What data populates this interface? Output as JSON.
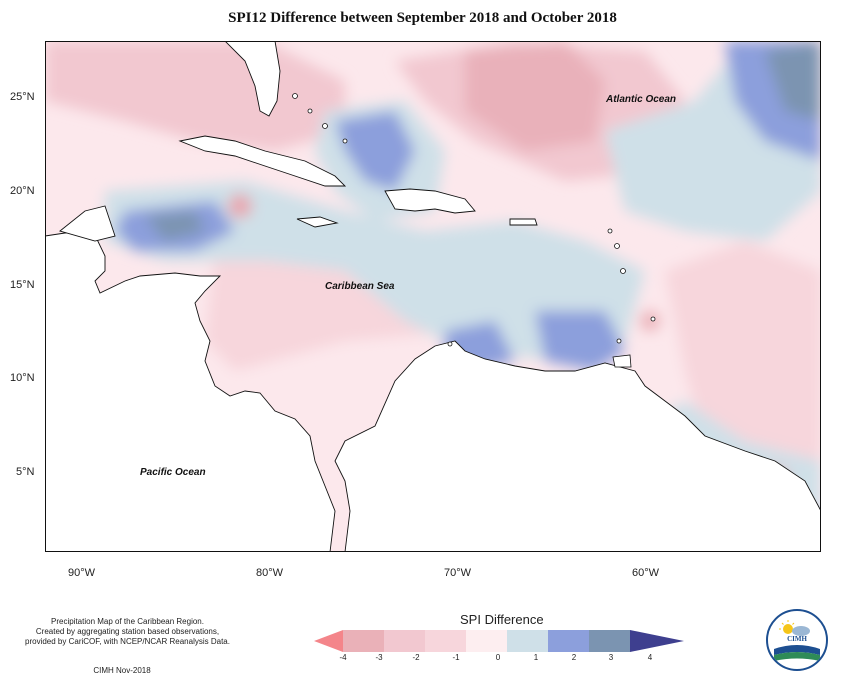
{
  "title": "SPI12 Difference between September 2018 and October 2018",
  "axes": {
    "x_ticks": [
      "90°W",
      "80°W",
      "70°W",
      "60°W"
    ],
    "y_ticks": [
      "25°N",
      "20°N",
      "15°N",
      "10°N",
      "5°N"
    ]
  },
  "labels": {
    "atlantic": "Atlantic Ocean",
    "caribbean": "Caribbean Sea",
    "pacific": "Pacific Ocean"
  },
  "footnote": {
    "line1": "Precipitation Map of the Caribbean Region.",
    "line2": "Created by aggregating station based observations,",
    "line3": "provided by CariCOF, with NCEP/NCAR Reanalysis Data.",
    "credit": "CIMH Nov-2018"
  },
  "legend": {
    "title": "SPI Difference",
    "ticks": [
      "-4",
      "-3",
      "-2",
      "-1",
      "0",
      "1",
      "2",
      "3",
      "4"
    ],
    "colors": [
      "#f4858a",
      "#eab1b8",
      "#f7d6dc",
      "#fdeef0",
      "#cfe0e8",
      "#8c9fdc",
      "#7b94b1",
      "#4d5a8a"
    ]
  },
  "logo": {
    "name": "CIMH"
  }
}
